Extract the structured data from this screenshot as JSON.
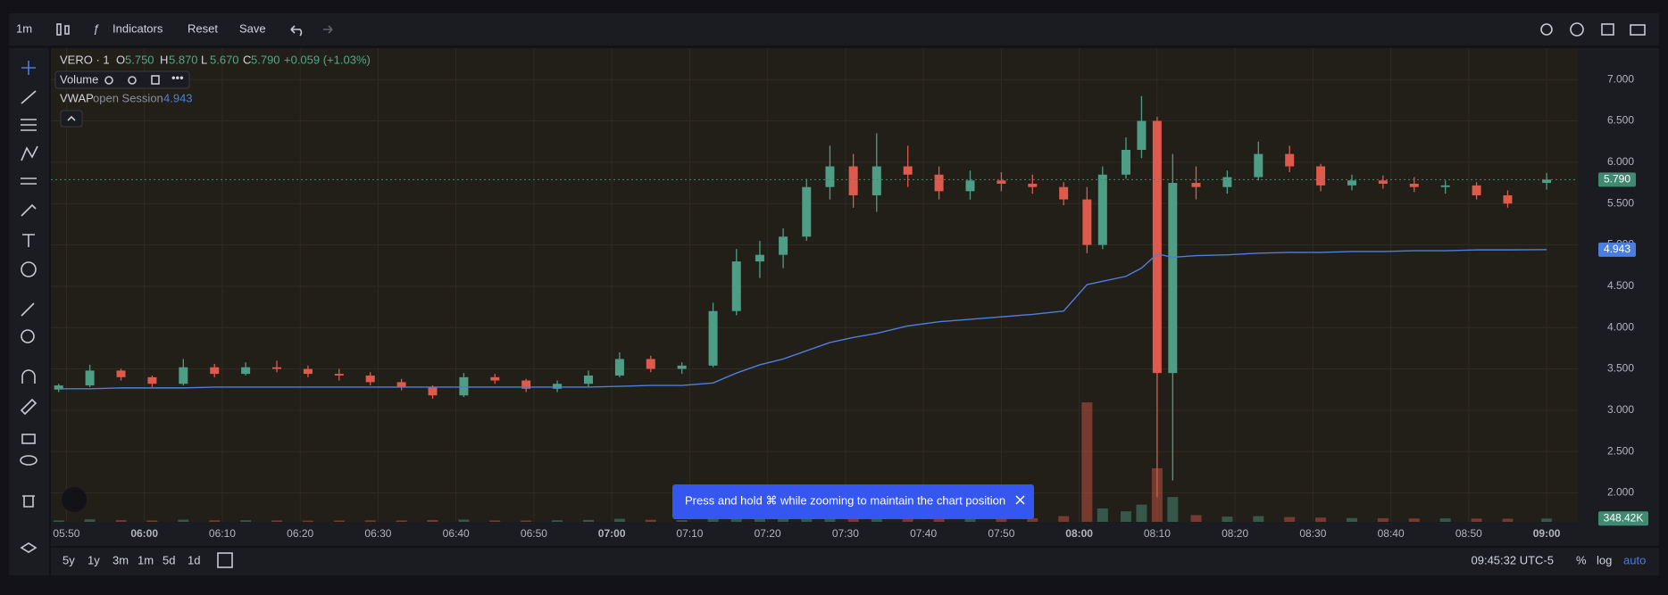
{
  "toolbar": {
    "interval": "1m",
    "indicators": "Indicators",
    "reset": "Reset",
    "save": "Save"
  },
  "legend": {
    "symbol": "VERO · 1",
    "o_key": "O",
    "open": {
      "value": 5.75,
      "label": "5.750"
    },
    "h_key": "H",
    "high": {
      "value": 5.87,
      "label": "5.870"
    },
    "l_key": "L",
    "low": {
      "value": 5.67,
      "label": "5.670"
    },
    "c_key": "C",
    "close": {
      "value": 5.79,
      "label": "5.790"
    },
    "change": "+0.059 (+1.03%)",
    "volume": "Volume",
    "vwap": "VWAP",
    "vwap_settings": "open Session",
    "vwap_value": {
      "value": 4.943,
      "label": "4.943"
    }
  },
  "chart_data": {
    "type": "candlestick",
    "x": [
      "05:49",
      "05:53",
      "05:57",
      "06:01",
      "06:05",
      "06:09",
      "06:13",
      "06:17",
      "06:21",
      "06:25",
      "06:29",
      "06:33",
      "06:37",
      "06:41",
      "06:45",
      "06:49",
      "06:53",
      "06:57",
      "07:01",
      "07:05",
      "07:09",
      "07:13",
      "07:16",
      "07:19",
      "07:22",
      "07:25",
      "07:28",
      "07:31",
      "07:34",
      "07:38",
      "07:42",
      "07:46",
      "07:50",
      "07:54",
      "07:58",
      "08:01",
      "08:03",
      "08:06",
      "08:08",
      "08:10",
      "08:12",
      "08:15",
      "08:19",
      "08:23",
      "08:27",
      "08:31",
      "08:35",
      "08:39",
      "08:43",
      "08:47",
      "08:51",
      "08:55",
      "09:00"
    ],
    "open": [
      3.25,
      3.3,
      3.48,
      3.4,
      3.32,
      3.52,
      3.44,
      3.52,
      3.5,
      3.44,
      3.42,
      3.34,
      3.28,
      3.18,
      3.4,
      3.36,
      3.26,
      3.32,
      3.42,
      3.62,
      3.5,
      3.54,
      4.2,
      4.8,
      4.88,
      5.1,
      5.7,
      5.95,
      5.6,
      5.95,
      5.85,
      5.65,
      5.78,
      5.74,
      5.7,
      5.55,
      5.0,
      5.85,
      6.15,
      6.5,
      3.45,
      5.75,
      5.7,
      5.82,
      6.1,
      5.95,
      5.72,
      5.78,
      5.74,
      5.7,
      5.72,
      5.6,
      5.75
    ],
    "high": [
      3.32,
      3.55,
      3.5,
      3.42,
      3.62,
      3.56,
      3.58,
      3.6,
      3.54,
      3.5,
      3.46,
      3.38,
      3.3,
      3.45,
      3.44,
      3.38,
      3.36,
      3.48,
      3.7,
      3.66,
      3.58,
      4.3,
      4.95,
      5.05,
      5.2,
      5.8,
      6.2,
      6.1,
      6.35,
      6.2,
      5.95,
      5.9,
      5.88,
      5.85,
      5.76,
      5.7,
      5.95,
      6.3,
      6.8,
      6.55,
      6.1,
      5.95,
      5.9,
      6.25,
      6.2,
      5.98,
      5.85,
      5.84,
      5.82,
      5.78,
      5.76,
      5.66,
      5.87
    ],
    "low": [
      3.22,
      3.28,
      3.36,
      3.28,
      3.3,
      3.4,
      3.42,
      3.46,
      3.4,
      3.36,
      3.3,
      3.24,
      3.14,
      3.16,
      3.32,
      3.22,
      3.22,
      3.28,
      3.4,
      3.46,
      3.44,
      3.52,
      4.15,
      4.6,
      4.72,
      5.05,
      5.55,
      5.45,
      5.4,
      5.7,
      5.55,
      5.55,
      5.65,
      5.62,
      5.48,
      4.9,
      4.95,
      5.8,
      6.05,
      1.95,
      2.15,
      5.55,
      5.62,
      5.78,
      5.88,
      5.65,
      5.66,
      5.68,
      5.64,
      5.62,
      5.55,
      5.45,
      5.67
    ],
    "close": [
      3.3,
      3.48,
      3.4,
      3.32,
      3.52,
      3.44,
      3.52,
      3.5,
      3.44,
      3.42,
      3.34,
      3.28,
      3.18,
      3.4,
      3.36,
      3.26,
      3.32,
      3.42,
      3.62,
      3.5,
      3.54,
      4.2,
      4.8,
      4.88,
      5.1,
      5.7,
      5.95,
      5.6,
      5.95,
      5.85,
      5.65,
      5.78,
      5.74,
      5.7,
      5.55,
      5.0,
      5.85,
      6.15,
      6.5,
      3.45,
      5.75,
      5.7,
      5.82,
      6.1,
      5.95,
      5.72,
      5.78,
      5.74,
      5.7,
      5.72,
      5.6,
      5.5,
      5.79
    ],
    "colors": {
      "up": "#4e9e85",
      "down": "#dd5a4c"
    },
    "vwap": {
      "color": "#4b7ee0",
      "values": [
        3.26,
        3.26,
        3.27,
        3.27,
        3.27,
        3.28,
        3.28,
        3.28,
        3.28,
        3.28,
        3.28,
        3.28,
        3.28,
        3.28,
        3.28,
        3.28,
        3.28,
        3.28,
        3.29,
        3.3,
        3.3,
        3.33,
        3.45,
        3.55,
        3.62,
        3.72,
        3.82,
        3.88,
        3.93,
        4.02,
        4.07,
        4.1,
        4.13,
        4.16,
        4.2,
        4.52,
        4.56,
        4.62,
        4.72,
        4.89,
        4.85,
        4.87,
        4.88,
        4.9,
        4.91,
        4.91,
        4.92,
        4.92,
        4.93,
        4.93,
        4.94,
        4.94,
        4.943
      ]
    },
    "volume": {
      "ylim": [
        0,
        14000000
      ],
      "values": [
        150000,
        260000,
        180000,
        140000,
        220000,
        160000,
        170000,
        150000,
        130000,
        140000,
        160000,
        150000,
        190000,
        240000,
        150000,
        140000,
        160000,
        200000,
        320000,
        210000,
        180000,
        650000,
        900000,
        700000,
        600000,
        850000,
        900000,
        600000,
        700000,
        500000,
        450000,
        400000,
        350000,
        380000,
        600000,
        12500000,
        1400000,
        1100000,
        1800000,
        5600000,
        2600000,
        700000,
        550000,
        600000,
        500000,
        450000,
        400000,
        380000,
        350000,
        360000,
        340000,
        330000,
        348420
      ],
      "last_label": {
        "value": 348420,
        "label": "348.42K"
      },
      "tag_color": "#3f8a70"
    },
    "ylim": [
      1.65,
      7.38
    ],
    "yticks": [
      {
        "value": 2,
        "label": "2.000"
      },
      {
        "value": 2.5,
        "label": "2.500"
      },
      {
        "value": 3,
        "label": "3.000"
      },
      {
        "value": 3.5,
        "label": "3.500"
      },
      {
        "value": 4,
        "label": "4.000"
      },
      {
        "value": 4.5,
        "label": "4.500"
      },
      {
        "value": 5,
        "label": "5.000"
      },
      {
        "value": 5.5,
        "label": "5.500"
      },
      {
        "value": 6,
        "label": "6.000"
      },
      {
        "value": 6.5,
        "label": "6.500"
      },
      {
        "value": 7,
        "label": "7.000"
      }
    ],
    "xlim": [
      "05:48",
      "09:04"
    ],
    "xticks": [
      "05:50",
      "06:00",
      "06:10",
      "06:20",
      "06:30",
      "06:40",
      "06:50",
      "07:00",
      "07:10",
      "07:20",
      "07:30",
      "07:40",
      "07:50",
      "08:00",
      "08:10",
      "08:20",
      "08:30",
      "08:40",
      "08:50",
      "09:00"
    ],
    "price_tags": [
      {
        "value": 5.79,
        "label": "5.790",
        "color": "#3f8a70"
      },
      {
        "value": 4.943,
        "label": "4.943",
        "color": "#4b7ee0"
      }
    ],
    "grid": true
  },
  "ranges": [
    "5y",
    "1y",
    "3m",
    "1m",
    "5d",
    "1d"
  ],
  "status": {
    "clock": "09:45:32 UTC-5",
    "percent": "%",
    "log": "log",
    "auto": "auto"
  },
  "toast": "Press and hold ⌘ while zooming to maintain the chart position"
}
